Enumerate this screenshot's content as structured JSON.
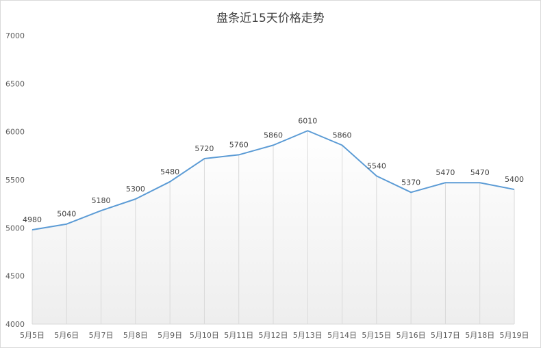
{
  "chart_data": {
    "type": "line",
    "title": "盘条近15天价格走势",
    "categories": [
      "5月5日",
      "5月6日",
      "5月7日",
      "5月8日",
      "5月9日",
      "5月10日",
      "5月11日",
      "5月12日",
      "5月13日",
      "5月14日",
      "5月15日",
      "5月16日",
      "5月17日",
      "5月18日",
      "5月19日"
    ],
    "series": [
      {
        "values": [
          4980,
          5040,
          5180,
          5300,
          5480,
          5720,
          5760,
          5860,
          6010,
          5860,
          5540,
          5370,
          5470,
          5470,
          5400
        ]
      }
    ],
    "ylim": [
      4000,
      7000
    ],
    "yticks": [
      "4000",
      "4500",
      "5000",
      "5500",
      "6000",
      "6500",
      "7000"
    ],
    "line_color": "#5b9bd5",
    "data_labels": true,
    "grid": "vertical"
  }
}
